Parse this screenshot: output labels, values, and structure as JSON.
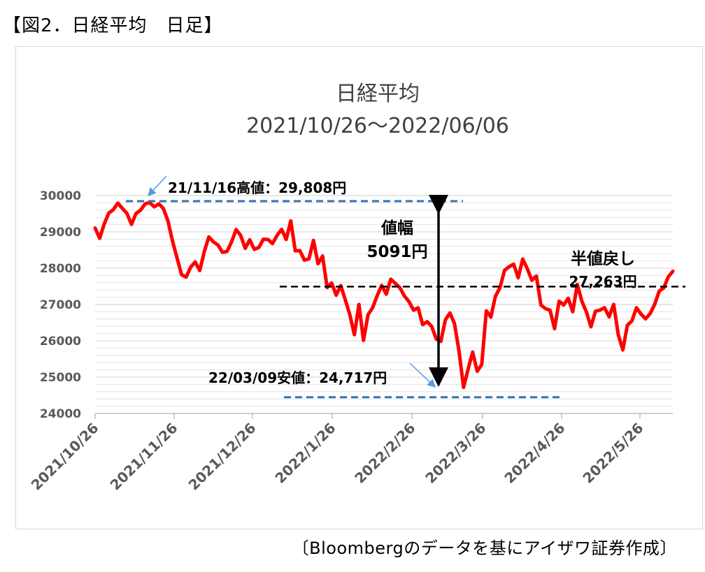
{
  "figure_label": "【図2．日経平均　日足】",
  "source_note": "〔Bloombergのデータを基にアイザワ証券作成〕",
  "chart_data": {
    "type": "line",
    "title": "日経平均",
    "subtitle": "2021/10/26～2022/06/06",
    "ylim": [
      24000,
      30000
    ],
    "yticks": [
      24000,
      25000,
      26000,
      27000,
      28000,
      29000,
      30000
    ],
    "ytick_labels": [
      "24000",
      "25000",
      "26000",
      "27000",
      "28000",
      "29000",
      "30000"
    ],
    "xtick_labels": [
      "2021/10/26",
      "2021/11/26",
      "2021/12/26",
      "2022/1/26",
      "2022/2/26",
      "2022/3/26",
      "2022/4/26",
      "2022/5/26"
    ],
    "grid": true,
    "line_color": "#ff0000",
    "series": [
      {
        "values": [
          29106,
          28821,
          29215,
          29520,
          29611,
          29794,
          29647,
          29508,
          29205,
          29507,
          29598,
          29771,
          29808,
          29688,
          29774,
          29642,
          29302,
          28751,
          28283,
          27821,
          27753,
          28029,
          28174,
          27935,
          28455,
          28861,
          28725,
          28640,
          28437,
          28459,
          28725,
          29066,
          28904,
          28546,
          28782,
          28517,
          28572,
          28798,
          28791,
          28676,
          28906,
          29069,
          28792,
          29301,
          28478,
          28487,
          28222,
          28257,
          28765,
          28124,
          28334,
          27467,
          27594,
          27257,
          27522,
          27129,
          26717,
          26170,
          27001,
          26011,
          26717,
          26909,
          27241,
          27527,
          27284,
          27696,
          27580,
          27460,
          27232,
          27079,
          26844,
          26910,
          26449,
          26526,
          26393,
          26050,
          25985,
          26577,
          26767,
          26476,
          25716,
          24717,
          25221,
          25690,
          25162,
          25346,
          26827,
          26652,
          27224,
          27467,
          27943,
          28040,
          28111,
          27737,
          28252,
          27986,
          27667,
          27787,
          26985,
          26888,
          26844,
          26335,
          27093,
          26985,
          27173,
          26800,
          27553,
          27093,
          26799,
          26386,
          26818,
          26847,
          26911,
          26659,
          27003,
          26167,
          25748,
          26428,
          26547,
          26911,
          26739,
          26605,
          26748,
          27001,
          27369,
          27458,
          27761,
          27915
        ],
        "color": "#ff0000"
      }
    ],
    "annotations": {
      "high_label": "21/11/16高値：29,808円",
      "high_value": 29808,
      "low_label": "22/03/09安値：24,717円",
      "low_value": 24717,
      "range_label": "値幅",
      "range_value_label": "5091円",
      "half_label": "半値戻し",
      "half_value_label": "27,263円",
      "half_value": 27263
    }
  }
}
